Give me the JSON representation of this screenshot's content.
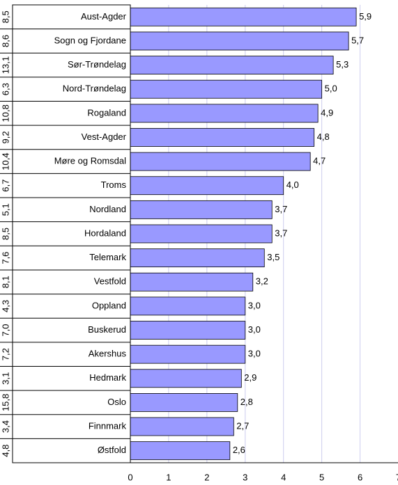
{
  "chart_data": {
    "type": "bar",
    "orientation": "horizontal",
    "categories": [
      "Aust-Agder",
      "Sogn og Fjordane",
      "Sør-Trøndelag",
      "Nord-Trøndelag",
      "Rogaland",
      "Vest-Agder",
      "Møre og Romsdal",
      "Troms",
      "Nordland",
      "Hordaland",
      "Telemark",
      "Vestfold",
      "Oppland",
      "Buskerud",
      "Akershus",
      "Hedmark",
      "Oslo",
      "Finnmark",
      "Østfold"
    ],
    "values": [
      5.9,
      5.7,
      5.3,
      5.0,
      4.9,
      4.8,
      4.7,
      4.0,
      3.7,
      3.7,
      3.5,
      3.2,
      3.0,
      3.0,
      3.0,
      2.9,
      2.8,
      2.7,
      2.6
    ],
    "value_labels": [
      "5,9",
      "5,7",
      "5,3",
      "5,0",
      "4,9",
      "4,8",
      "4,7",
      "4,0",
      "3,7",
      "3,7",
      "3,5",
      "3,2",
      "3,0",
      "3,0",
      "3,0",
      "2,9",
      "2,8",
      "2,7",
      "2,6"
    ],
    "row_notes": [
      "8,5",
      "8,6",
      "13,1",
      "6,3",
      "10,8",
      "9,2",
      "10,4",
      "6,7",
      "5,1",
      "8,5",
      "7,6",
      "8,1",
      "4,3",
      "7,0",
      "7,2",
      "3,1",
      "15,8",
      "3,4",
      "4,8"
    ],
    "color": "#9999ff",
    "xlim": [
      0,
      7
    ],
    "xticks": [
      0,
      1,
      2,
      3,
      4,
      5,
      6,
      7
    ],
    "grid": true
  }
}
